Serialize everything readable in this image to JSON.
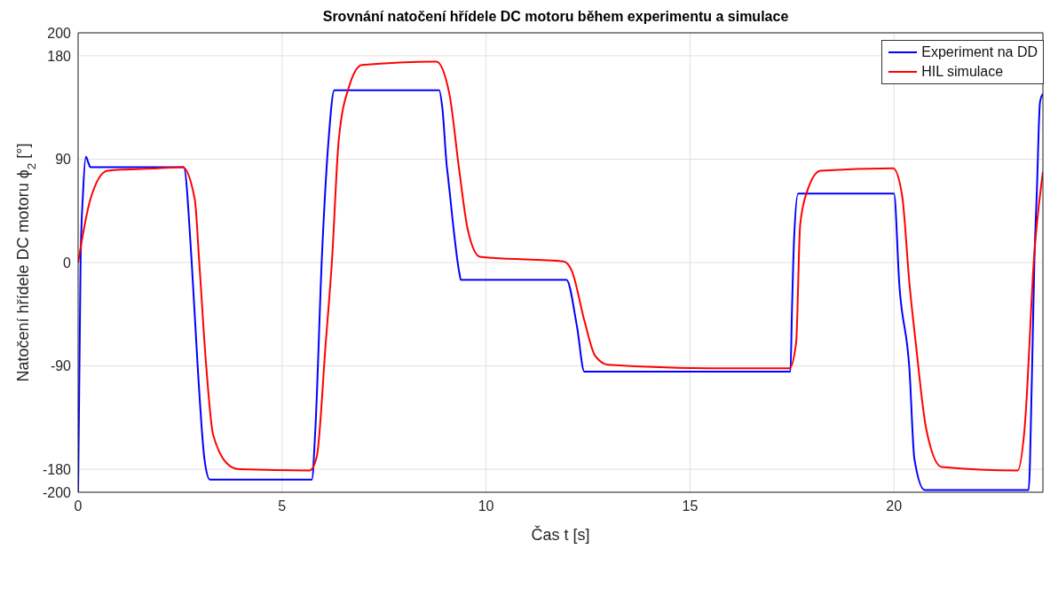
{
  "chart_data": {
    "type": "line",
    "title": "Srovnání natočení hřídele DC motoru během experimentu a simulace",
    "xlabel": "Čas t [s]",
    "ylabel": "Natočení hřídele DC motoru ϕ$_{2}$ [°]",
    "xlim": [
      0,
      23.65
    ],
    "xticks": [
      0,
      5,
      10,
      15,
      20
    ],
    "ylim": [
      -200,
      200
    ],
    "yticks": [
      -200,
      -180,
      -90,
      0,
      90,
      180,
      200
    ],
    "grid": true,
    "legend": "top right",
    "marker": "none",
    "line_style": "solid",
    "series": [
      {
        "name": "Experiment na DD",
        "color": "#0000ff",
        "x": [
          0,
          0.06,
          0.12,
          0.19,
          0.25,
          0.3,
          2.59,
          2.78,
          2.94,
          3.1,
          3.23,
          5.73,
          5.81,
          5.98,
          6.14,
          6.28,
          8.85,
          8.93,
          9.04,
          9.05,
          9.35,
          9.38,
          11.97,
          12.23,
          12.41,
          17.46,
          17.5,
          17.55,
          17.65,
          20.0,
          20.13,
          20.38,
          20.5,
          20.75,
          23.3,
          23.38,
          23.44,
          23.5,
          23.58,
          23.65
        ],
        "values": [
          -200,
          0,
          60,
          92,
          87,
          83,
          83,
          3,
          -96,
          -172,
          -189,
          -189,
          -149,
          8,
          107,
          150,
          150,
          134,
          83,
          80,
          -10,
          -15,
          -15,
          -56,
          -95,
          -95,
          -40,
          20,
          60,
          60,
          -19,
          -94,
          -171,
          -198,
          -198,
          -100,
          0,
          60,
          140,
          147
        ]
      },
      {
        "name": "HIL simulace",
        "color": "#ff0000",
        "x": [
          0,
          0.3,
          0.72,
          1.95,
          2.56,
          2.86,
          2.97,
          3.14,
          3.31,
          3.76,
          3.97,
          5.68,
          5.85,
          6.07,
          6.22,
          6.39,
          6.65,
          6.96,
          8.78,
          9.1,
          9.34,
          9.55,
          9.85,
          10.17,
          11.9,
          12.1,
          12.42,
          12.67,
          12.99,
          15.47,
          17.44,
          17.6,
          17.7,
          17.88,
          18.2,
          19.98,
          20.2,
          20.38,
          20.53,
          20.79,
          21.17,
          23.03,
          23.2,
          23.44,
          23.65
        ],
        "values": [
          0,
          55,
          80,
          82,
          83,
          55,
          0,
          -90,
          -150,
          -178,
          -180,
          -181,
          -169,
          -70,
          0,
          107,
          154,
          172,
          175,
          147,
          81,
          29,
          5,
          4,
          1,
          -7,
          -52,
          -81,
          -89,
          -92,
          -92,
          -70,
          33,
          63,
          80,
          82,
          58,
          -19,
          -69,
          -145,
          -178,
          -181,
          -145,
          8,
          79
        ]
      }
    ]
  }
}
